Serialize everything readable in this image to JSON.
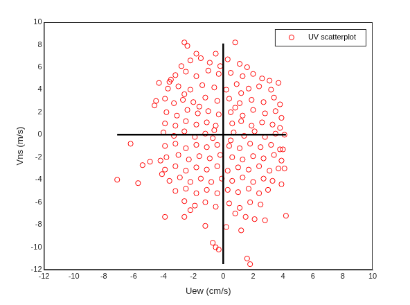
{
  "chart_data": {
    "type": "scatter",
    "xlabel": "Uew (cm/s)",
    "ylabel": "Vns (m/s)",
    "xlim": [
      -12,
      10
    ],
    "ylim": [
      -12,
      10
    ],
    "xticks": [
      -12,
      -10,
      -8,
      -6,
      -4,
      -2,
      0,
      2,
      4,
      6,
      8,
      10
    ],
    "yticks": [
      -12,
      -10,
      -8,
      -6,
      -4,
      -2,
      0,
      2,
      4,
      6,
      8,
      10
    ],
    "grid": false,
    "legend": "northeast",
    "series": [
      {
        "name": "UV scatterplot",
        "color": "#ff0000",
        "marker": "circle",
        "points": [
          [
            -7.1,
            -4.0
          ],
          [
            -6.2,
            -0.8
          ],
          [
            -5.7,
            -4.3
          ],
          [
            -5.4,
            -2.7
          ],
          [
            -4.9,
            -2.4
          ],
          [
            -3.9,
            -7.3
          ],
          [
            -2.6,
            -7.3
          ],
          [
            4.2,
            -7.2
          ],
          [
            1.6,
            -11.0
          ],
          [
            1.8,
            -11.5
          ],
          [
            -0.7,
            -9.6
          ],
          [
            -0.5,
            -10.0
          ],
          [
            -0.3,
            -10.2
          ],
          [
            0.2,
            -8.2
          ],
          [
            -1.2,
            -8.1
          ],
          [
            1.2,
            -8.5
          ],
          [
            2.8,
            -7.6
          ],
          [
            2.1,
            -7.5
          ],
          [
            -2.6,
            8.2
          ],
          [
            0.8,
            8.2
          ],
          [
            -1.8,
            7.2
          ],
          [
            -2.4,
            7.9
          ],
          [
            -0.5,
            7.2
          ],
          [
            -4.3,
            4.6
          ],
          [
            -3.6,
            4.7
          ],
          [
            -4.5,
            3.0
          ],
          [
            -4.6,
            2.6
          ],
          [
            3.7,
            4.6
          ],
          [
            3.8,
            2.7
          ],
          [
            4.0,
            -1.3
          ],
          [
            4.1,
            -3.0
          ],
          [
            3.9,
            -4.4
          ],
          [
            -4.1,
            -3.5
          ],
          [
            -4.2,
            -2.3
          ],
          [
            -2.2,
            6.6
          ],
          [
            -1.5,
            6.8
          ],
          [
            -0.9,
            6.4
          ],
          [
            0.3,
            6.7
          ],
          [
            1.1,
            6.3
          ],
          [
            -2.8,
            6.1
          ],
          [
            1.6,
            6.0
          ],
          [
            -0.2,
            6.1
          ],
          [
            -3.2,
            5.3
          ],
          [
            -2.5,
            5.6
          ],
          [
            -1.8,
            5.2
          ],
          [
            -1.0,
            5.7
          ],
          [
            -0.3,
            5.4
          ],
          [
            0.5,
            5.5
          ],
          [
            1.3,
            5.2
          ],
          [
            2.0,
            5.4
          ],
          [
            2.6,
            5.0
          ],
          [
            -3.5,
            4.9
          ],
          [
            3.1,
            4.8
          ],
          [
            -3.7,
            4.1
          ],
          [
            -3.0,
            4.3
          ],
          [
            -2.2,
            4.0
          ],
          [
            -1.4,
            4.4
          ],
          [
            -0.6,
            4.2
          ],
          [
            0.2,
            4.0
          ],
          [
            0.9,
            4.5
          ],
          [
            1.7,
            4.1
          ],
          [
            2.4,
            4.3
          ],
          [
            3.2,
            4.0
          ],
          [
            -2.6,
            3.6
          ],
          [
            1.2,
            3.7
          ],
          [
            -3.9,
            3.2
          ],
          [
            -3.3,
            2.8
          ],
          [
            -2.7,
            3.1
          ],
          [
            -2.0,
            2.9
          ],
          [
            -1.2,
            3.3
          ],
          [
            -0.4,
            3.0
          ],
          [
            0.4,
            3.2
          ],
          [
            1.1,
            2.8
          ],
          [
            1.9,
            3.1
          ],
          [
            2.7,
            2.9
          ],
          [
            3.4,
            3.3
          ],
          [
            -1.6,
            2.5
          ],
          [
            0.8,
            2.4
          ],
          [
            -3.8,
            2.0
          ],
          [
            -3.1,
            1.7
          ],
          [
            -2.4,
            2.2
          ],
          [
            -1.7,
            1.9
          ],
          [
            -1.0,
            2.1
          ],
          [
            -0.3,
            1.8
          ],
          [
            0.5,
            2.0
          ],
          [
            1.3,
            1.7
          ],
          [
            2.0,
            2.2
          ],
          [
            2.8,
            1.9
          ],
          [
            3.5,
            2.1
          ],
          [
            3.9,
            1.5
          ],
          [
            -3.9,
            1.0
          ],
          [
            -3.2,
            0.8
          ],
          [
            -2.5,
            1.2
          ],
          [
            -1.8,
            0.9
          ],
          [
            -1.1,
            1.1
          ],
          [
            -0.5,
            0.8
          ],
          [
            0.6,
            1.0
          ],
          [
            1.2,
            1.2
          ],
          [
            1.9,
            0.8
          ],
          [
            2.6,
            1.1
          ],
          [
            3.3,
            0.9
          ],
          [
            3.8,
            0.6
          ],
          [
            -4.0,
            0.2
          ],
          [
            -3.3,
            -0.1
          ],
          [
            -2.6,
            0.3
          ],
          [
            -1.9,
            -0.2
          ],
          [
            -1.2,
            0.1
          ],
          [
            -0.7,
            -0.3
          ],
          [
            0.7,
            0.2
          ],
          [
            1.4,
            -0.1
          ],
          [
            2.1,
            0.3
          ],
          [
            2.8,
            -0.2
          ],
          [
            3.5,
            0.1
          ],
          [
            4.1,
            0.0
          ],
          [
            -0.6,
            0.4
          ],
          [
            0.5,
            -0.5
          ],
          [
            -3.9,
            -1.0
          ],
          [
            -3.2,
            -0.8
          ],
          [
            -2.5,
            -1.2
          ],
          [
            -1.8,
            -0.9
          ],
          [
            -1.1,
            -1.1
          ],
          [
            -0.4,
            -0.9
          ],
          [
            0.4,
            -1.0
          ],
          [
            1.1,
            -1.2
          ],
          [
            1.8,
            -0.8
          ],
          [
            2.5,
            -1.1
          ],
          [
            3.2,
            -0.9
          ],
          [
            3.8,
            -1.3
          ],
          [
            -3.8,
            -2.0
          ],
          [
            -3.0,
            -1.8
          ],
          [
            -2.3,
            -2.2
          ],
          [
            -1.6,
            -1.9
          ],
          [
            -0.9,
            -2.1
          ],
          [
            -0.2,
            -1.8
          ],
          [
            0.6,
            -2.0
          ],
          [
            1.3,
            -2.2
          ],
          [
            2.0,
            -1.9
          ],
          [
            2.7,
            -2.1
          ],
          [
            3.4,
            -1.8
          ],
          [
            3.9,
            -2.3
          ],
          [
            -3.9,
            -3.1
          ],
          [
            -3.2,
            -2.8
          ],
          [
            -2.5,
            -3.2
          ],
          [
            -1.8,
            -2.9
          ],
          [
            -1.1,
            -3.1
          ],
          [
            -0.4,
            -2.8
          ],
          [
            0.3,
            -3.2
          ],
          [
            1.0,
            -2.9
          ],
          [
            1.7,
            -3.1
          ],
          [
            2.4,
            -2.8
          ],
          [
            3.1,
            -3.2
          ],
          [
            3.7,
            -3.0
          ],
          [
            -3.6,
            -4.1
          ],
          [
            -2.9,
            -3.8
          ],
          [
            -2.2,
            -4.2
          ],
          [
            -1.5,
            -3.9
          ],
          [
            -0.8,
            -4.2
          ],
          [
            -0.1,
            -3.9
          ],
          [
            0.6,
            -4.1
          ],
          [
            1.3,
            -3.8
          ],
          [
            2.0,
            -4.2
          ],
          [
            2.7,
            -3.9
          ],
          [
            3.3,
            -4.1
          ],
          [
            -3.2,
            -5.0
          ],
          [
            -2.5,
            -4.8
          ],
          [
            -1.8,
            -5.2
          ],
          [
            -1.1,
            -4.9
          ],
          [
            -0.4,
            -5.2
          ],
          [
            0.3,
            -4.9
          ],
          [
            1.0,
            -5.1
          ],
          [
            1.7,
            -4.8
          ],
          [
            2.4,
            -5.2
          ],
          [
            3.0,
            -4.9
          ],
          [
            -2.6,
            -5.9
          ],
          [
            -1.9,
            -6.3
          ],
          [
            -1.2,
            -6.0
          ],
          [
            -0.5,
            -6.4
          ],
          [
            0.4,
            -6.1
          ],
          [
            1.1,
            -6.5
          ],
          [
            1.8,
            -6.0
          ],
          [
            2.5,
            -6.2
          ],
          [
            -2.2,
            -6.7
          ],
          [
            0.8,
            -7.0
          ],
          [
            1.5,
            -7.3
          ]
        ]
      }
    ],
    "axis_lines": [
      {
        "color": "#000000",
        "x": [
          -7.1,
          4.2
        ],
        "y": [
          0,
          0
        ]
      },
      {
        "color": "#000000",
        "x": [
          0,
          0
        ],
        "y": [
          -11.5,
          8.1
        ]
      }
    ]
  }
}
